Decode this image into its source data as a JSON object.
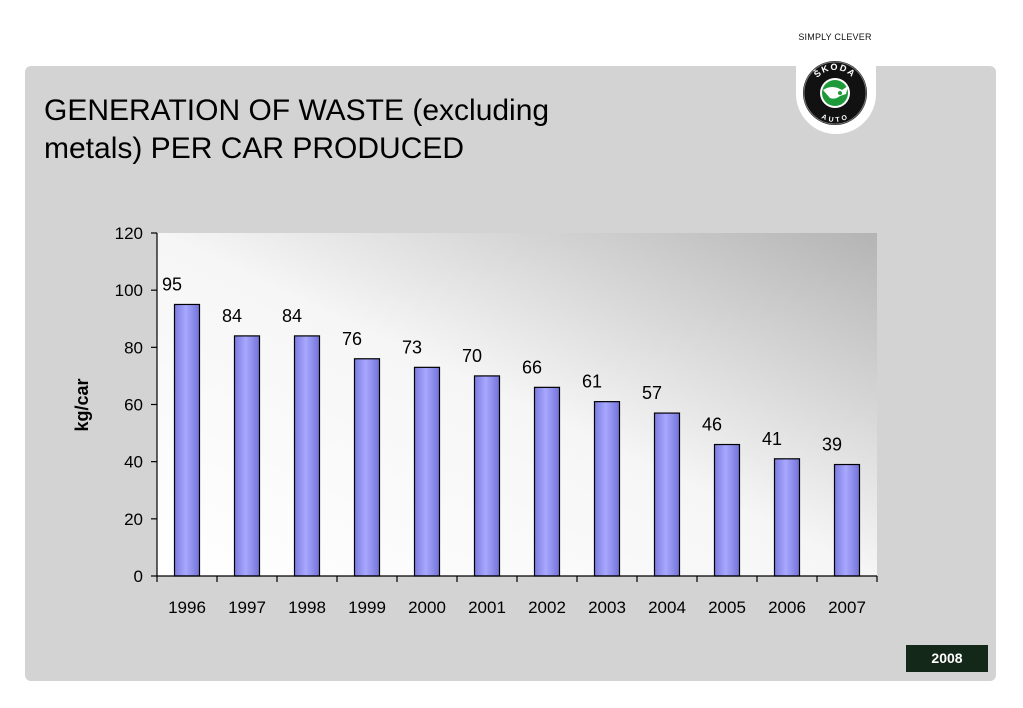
{
  "header": {
    "slogan": "SIMPLY CLEVER",
    "logo_top_text": "ŠKODA",
    "logo_bottom_text": "AUTO",
    "logo_icon": "skoda-winged-arrow-logo"
  },
  "slide": {
    "title_line1": "GENERATION OF WASTE (excluding",
    "title_line2": "metals) PER CAR PRODUCED",
    "year_badge": "2008"
  },
  "colors": {
    "bar_fill": "#9999ff",
    "bar_stroke": "#000000",
    "panel_bg": "#d3d3d3",
    "badge_bg": "#14281a"
  },
  "chart_data": {
    "type": "bar",
    "categories": [
      "1996",
      "1997",
      "1998",
      "1999",
      "2000",
      "2001",
      "2002",
      "2003",
      "2004",
      "2005",
      "2006",
      "2007"
    ],
    "values": [
      95,
      84,
      84,
      76,
      73,
      70,
      66,
      61,
      57,
      46,
      41,
      39
    ],
    "data_labels": [
      "95",
      "84",
      "84",
      "76",
      "73",
      "70",
      "66",
      "61",
      "57",
      "46",
      "41",
      "39"
    ],
    "title": "",
    "xlabel": "",
    "ylabel": "kg/car",
    "ylim": [
      0,
      120
    ],
    "yticks": [
      "0",
      "20",
      "40",
      "60",
      "80",
      "100",
      "120"
    ],
    "grid": false,
    "legend": "none"
  }
}
